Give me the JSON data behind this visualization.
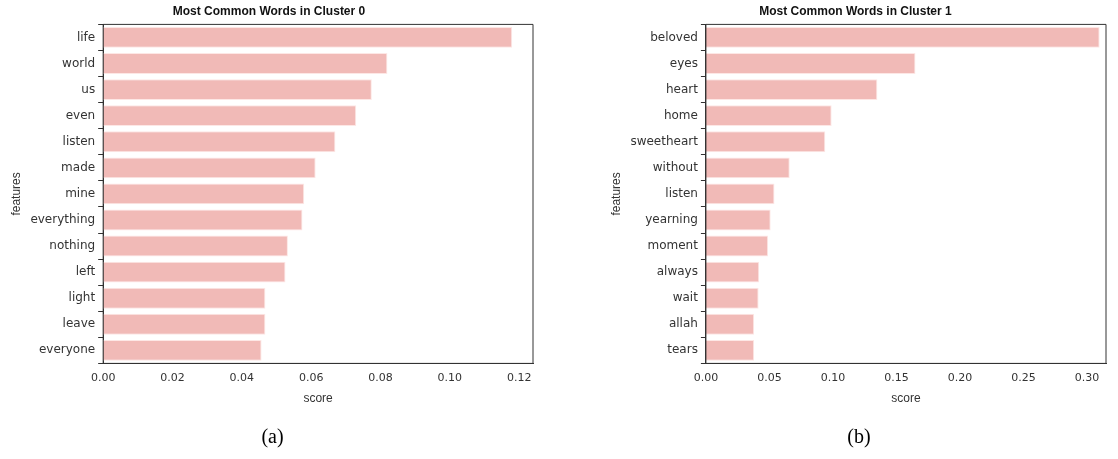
{
  "chart_data": [
    {
      "type": "bar",
      "orientation": "horizontal",
      "title": "Most Common Words in Cluster 0",
      "xlabel": "score",
      "ylabel": "features",
      "categories": [
        "life",
        "world",
        "us",
        "even",
        "listen",
        "made",
        "mine",
        "everything",
        "nothing",
        "left",
        "light",
        "leave",
        "everyone"
      ],
      "values": [
        0.118,
        0.082,
        0.0775,
        0.073,
        0.067,
        0.0613,
        0.058,
        0.0575,
        0.0533,
        0.0526,
        0.0468,
        0.0468,
        0.0457
      ],
      "color": "#f1bab7",
      "xlim": [
        0,
        0.124
      ],
      "xticks": [
        {
          "value": 0,
          "label": "0.00"
        },
        0.02,
        0.04,
        0.06,
        0.08,
        {
          "value": 0.1,
          "label": "0.10"
        },
        0.12
      ],
      "annotations": [
        "(a)"
      ]
    },
    {
      "type": "bar",
      "orientation": "horizontal",
      "title": "Most Common Words in Cluster 1",
      "xlabel": "score",
      "ylabel": "features",
      "categories": [
        "beloved",
        "eyes",
        "heart",
        "home",
        "sweetheart",
        "without",
        "listen",
        "yearning",
        "moment",
        "always",
        "wait",
        "allah",
        "tears"
      ],
      "values": [
        0.31,
        0.165,
        0.135,
        0.099,
        0.094,
        0.066,
        0.054,
        0.051,
        0.049,
        0.042,
        0.0415,
        0.038,
        0.038
      ],
      "color": "#f1bab7",
      "xlim": [
        0,
        0.315
      ],
      "xticks": [
        {
          "value": 0,
          "label": "0.00"
        },
        0.05,
        {
          "value": 0.1,
          "label": "0.10"
        },
        0.15,
        {
          "value": 0.2,
          "label": "0.20"
        },
        0.25,
        {
          "value": 0.3,
          "label": "0.30"
        }
      ],
      "annotations": [
        "(b)"
      ]
    }
  ]
}
